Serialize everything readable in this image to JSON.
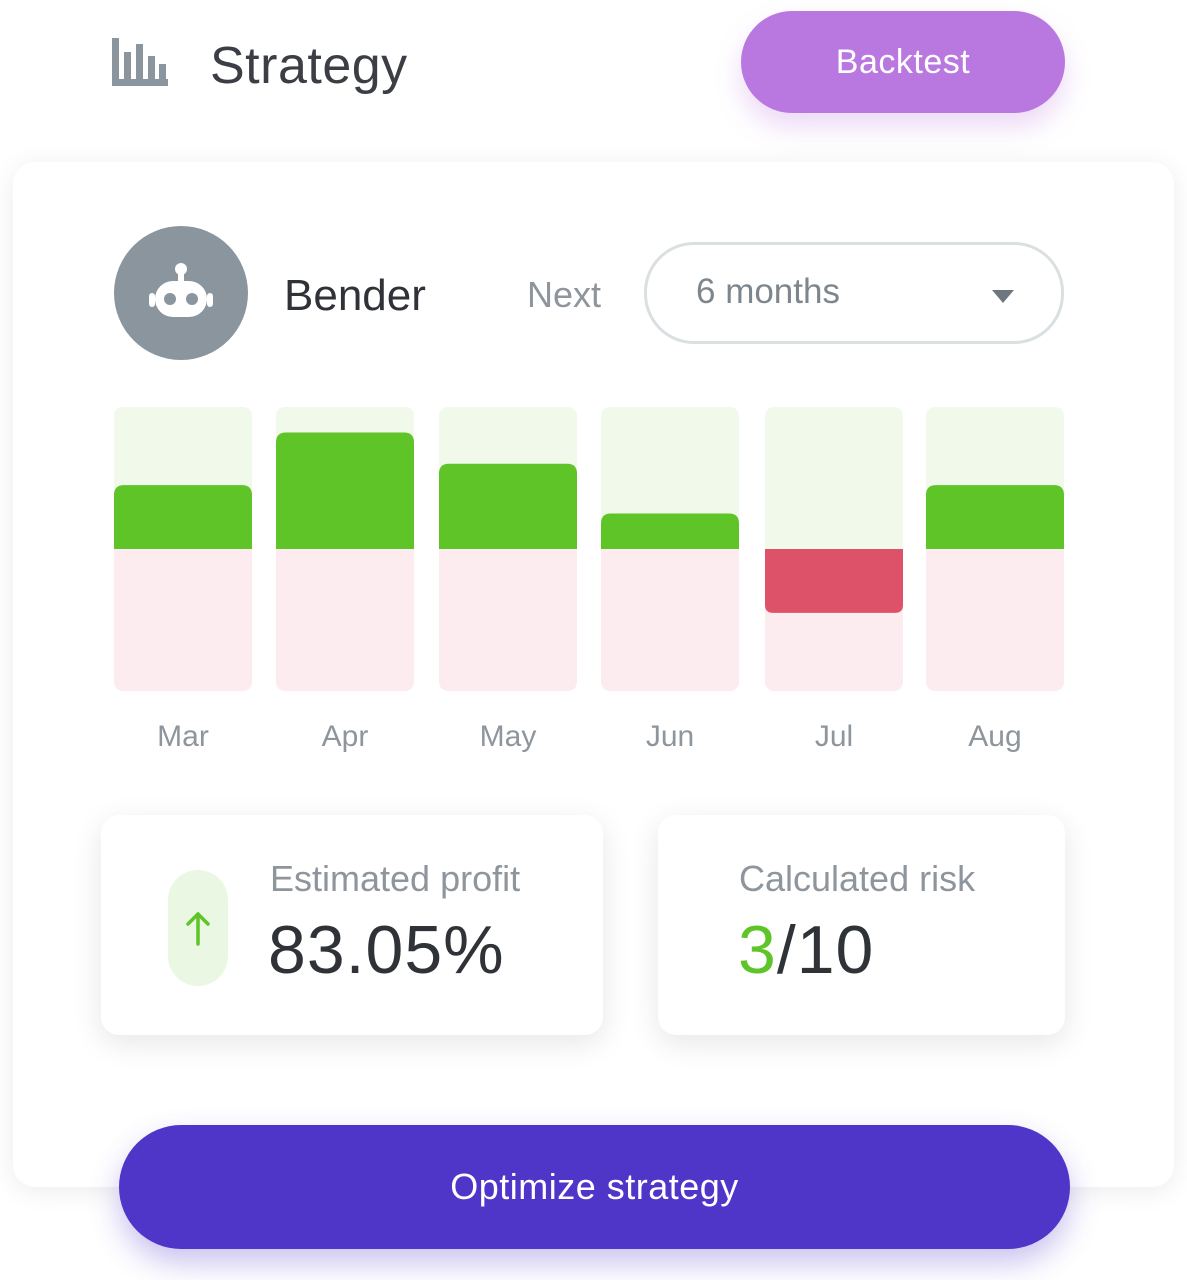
{
  "header": {
    "icon": "bar-chart-icon",
    "title": "Strategy",
    "backtest_label": "Backtest"
  },
  "strategy": {
    "bot_icon": "robot-icon",
    "bot_name": "Bender",
    "next_label": "Next",
    "period_selected": "6 months"
  },
  "chart_data": {
    "type": "bar",
    "categories": [
      "Mar",
      "Apr",
      "May",
      "Jun",
      "Jul",
      "Aug"
    ],
    "values": [
      0.45,
      0.82,
      0.6,
      0.25,
      -0.45,
      0.45
    ],
    "ylim": [
      -1,
      1
    ],
    "colors": {
      "positive": "#5ec428",
      "negative": "#de5269",
      "positive_track": "#f1f9ea",
      "negative_track": "#fcecef"
    }
  },
  "stats": {
    "profit": {
      "icon": "arrow-up-icon",
      "label": "Estimated profit",
      "value": "83.05%"
    },
    "risk": {
      "label": "Calculated risk",
      "score": "3",
      "max": "/10"
    }
  },
  "optimize_label": "Optimize strategy",
  "colors": {
    "accent_purple": "#b978e0",
    "primary": "#4f36c9",
    "success": "#5ec428"
  }
}
